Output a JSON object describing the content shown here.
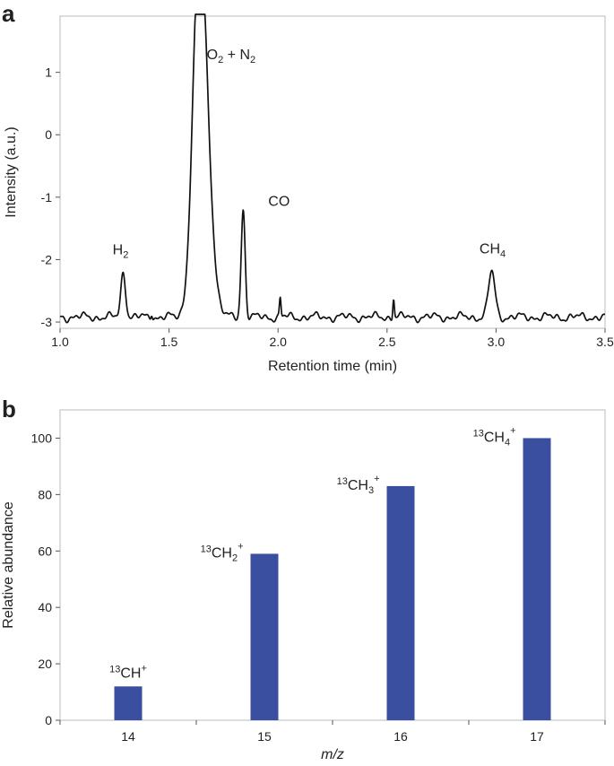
{
  "chart_data": [
    {
      "panel": "a",
      "type": "line",
      "xlabel": "Retention time (min)",
      "ylabel": "Intensity (a.u.)",
      "xlim": [
        1.0,
        3.5
      ],
      "ylim": [
        -3.1,
        1.9
      ],
      "xticks": [
        "1.0",
        "1.5",
        "2.0",
        "2.5",
        "3.0",
        "3.5"
      ],
      "yticks": [
        "1",
        "0",
        "-1",
        "-2",
        "-3"
      ],
      "baseline": -2.92,
      "peaks": [
        {
          "name": "H2",
          "label": "H",
          "sub": "2",
          "x": 1.29,
          "height": -2.2,
          "width": 0.011
        },
        {
          "name": "O2+N2",
          "label_a": "O",
          "sub_a": "2",
          "label_b": " + N",
          "sub_b": "2",
          "x": 1.64,
          "height": 1.9,
          "width": 0.03
        },
        {
          "name": "CO",
          "label": "CO",
          "x": 1.84,
          "height": -1.18,
          "width": 0.009
        },
        {
          "name": "CH4",
          "label": "CH",
          "sub": "4",
          "x": 2.98,
          "height": -2.2,
          "width": 0.015
        }
      ],
      "minor_spikes": [
        {
          "x": 1.42,
          "height": -2.83
        },
        {
          "x": 2.01,
          "height": -2.62
        },
        {
          "x": 2.53,
          "height": -2.6
        }
      ]
    },
    {
      "panel": "b",
      "type": "bar",
      "xlabel": "m/z",
      "ylabel": "Relative abundance",
      "categories": [
        "14",
        "15",
        "16",
        "17"
      ],
      "values": [
        12,
        59,
        83,
        100
      ],
      "ylim": [
        0,
        110
      ],
      "yticks": [
        "0",
        "20",
        "40",
        "60",
        "80",
        "100"
      ],
      "bar_color": "#3a4fa0",
      "bar_labels": [
        {
          "sup": "13",
          "main": "CH",
          "sup2": "+"
        },
        {
          "sup": "13",
          "main": "CH",
          "sub": "2",
          "sup2": "+"
        },
        {
          "sup": "13",
          "main": "CH",
          "sub": "3",
          "sup2": "+"
        },
        {
          "sup": "13",
          "main": "CH",
          "sub": "4",
          "sup2": "+"
        }
      ]
    }
  ],
  "panel_letters": {
    "a": "a",
    "b": "b"
  }
}
